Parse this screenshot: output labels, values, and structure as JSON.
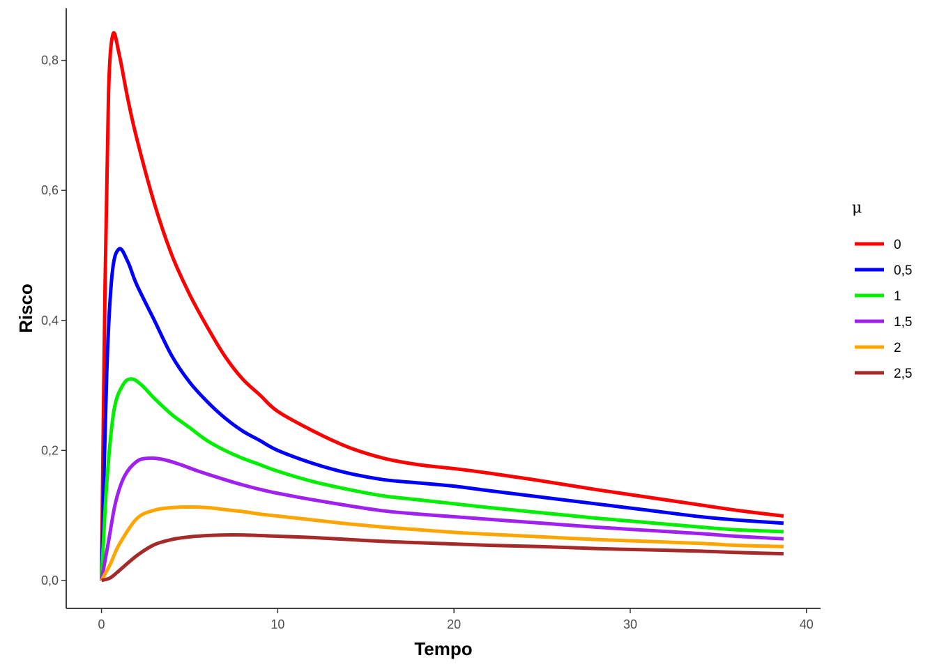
{
  "chart_data": {
    "type": "line",
    "xlabel": "Tempo",
    "ylabel": "Risco",
    "xlim": [
      -2,
      40.8
    ],
    "ylim": [
      -0.043,
      0.88
    ],
    "x_ticks": [
      0,
      10,
      20,
      30,
      40
    ],
    "x_tick_labels": [
      "0",
      "10",
      "20",
      "30",
      "40"
    ],
    "y_ticks": [
      0.0,
      0.2,
      0.4,
      0.6,
      0.8
    ],
    "y_tick_labels": [
      "0,0",
      "0,2",
      "0,4",
      "0,6",
      "0,8"
    ],
    "grid": false,
    "legend": {
      "title": "μ",
      "position": "right"
    },
    "series": [
      {
        "name": "0",
        "color": "#ff0000",
        "x": [
          0,
          0.2,
          0.4,
          0.65,
          1.0,
          1.5,
          2,
          3,
          4,
          5,
          6,
          7,
          8,
          9,
          10,
          12,
          14,
          16,
          18,
          20,
          22,
          25,
          28,
          31,
          34,
          36,
          38.7
        ],
        "y": [
          0,
          0.45,
          0.75,
          0.84,
          0.81,
          0.74,
          0.68,
          0.58,
          0.5,
          0.44,
          0.39,
          0.345,
          0.31,
          0.285,
          0.26,
          0.23,
          0.205,
          0.188,
          0.178,
          0.172,
          0.165,
          0.153,
          0.14,
          0.128,
          0.116,
          0.108,
          0.099
        ]
      },
      {
        "name": "0,5",
        "color": "#0000ff",
        "x": [
          0,
          0.3,
          0.6,
          1.0,
          1.5,
          2,
          3,
          4,
          5,
          6,
          7,
          8,
          9,
          10,
          12,
          14,
          16,
          18,
          20,
          22,
          25,
          28,
          31,
          34,
          36,
          38.7
        ],
        "y": [
          0,
          0.32,
          0.47,
          0.51,
          0.49,
          0.455,
          0.4,
          0.345,
          0.305,
          0.275,
          0.25,
          0.23,
          0.215,
          0.2,
          0.18,
          0.165,
          0.155,
          0.15,
          0.145,
          0.138,
          0.128,
          0.118,
          0.108,
          0.098,
          0.093,
          0.088
        ]
      },
      {
        "name": "1",
        "color": "#00ee00",
        "x": [
          0,
          0.3,
          0.7,
          1.2,
          1.7,
          2.3,
          3,
          4,
          5,
          6,
          7,
          8,
          9,
          10,
          12,
          14,
          16,
          18,
          20,
          22,
          25,
          28,
          31,
          34,
          36,
          38.7
        ],
        "y": [
          0,
          0.15,
          0.26,
          0.3,
          0.31,
          0.3,
          0.28,
          0.255,
          0.235,
          0.215,
          0.2,
          0.188,
          0.178,
          0.168,
          0.152,
          0.14,
          0.13,
          0.124,
          0.118,
          0.112,
          0.104,
          0.096,
          0.089,
          0.082,
          0.078,
          0.075
        ]
      },
      {
        "name": "1,5",
        "color": "#a020f0",
        "x": [
          0,
          0.4,
          0.8,
          1.3,
          2,
          2.7,
          3.5,
          4.5,
          5.5,
          7,
          8,
          9,
          10,
          12,
          14,
          16,
          18,
          20,
          22,
          25,
          28,
          31,
          34,
          36,
          38.7
        ],
        "y": [
          0,
          0.06,
          0.12,
          0.16,
          0.183,
          0.188,
          0.186,
          0.178,
          0.168,
          0.155,
          0.147,
          0.14,
          0.134,
          0.124,
          0.115,
          0.107,
          0.102,
          0.098,
          0.094,
          0.088,
          0.082,
          0.077,
          0.072,
          0.068,
          0.064
        ]
      },
      {
        "name": "2",
        "color": "#ffa500",
        "x": [
          0,
          0.5,
          1,
          2,
          3,
          4,
          5,
          6,
          7,
          8,
          9,
          10,
          12,
          14,
          16,
          18,
          20,
          22,
          25,
          28,
          31,
          34,
          36,
          38.7
        ],
        "y": [
          0,
          0.025,
          0.055,
          0.095,
          0.108,
          0.112,
          0.113,
          0.112,
          0.109,
          0.106,
          0.102,
          0.099,
          0.093,
          0.087,
          0.082,
          0.078,
          0.074,
          0.071,
          0.067,
          0.063,
          0.06,
          0.057,
          0.054,
          0.052
        ]
      },
      {
        "name": "2,5",
        "color": "#a52a2a",
        "x": [
          0,
          0.5,
          1,
          2,
          3,
          4,
          5,
          6,
          7,
          8,
          9,
          10,
          12,
          14,
          16,
          18,
          20,
          22,
          25,
          28,
          31,
          34,
          36,
          38.7
        ],
        "y": [
          0,
          0.004,
          0.015,
          0.038,
          0.055,
          0.063,
          0.067,
          0.069,
          0.07,
          0.07,
          0.069,
          0.068,
          0.066,
          0.063,
          0.06,
          0.058,
          0.056,
          0.054,
          0.052,
          0.049,
          0.047,
          0.045,
          0.043,
          0.041
        ]
      }
    ]
  }
}
